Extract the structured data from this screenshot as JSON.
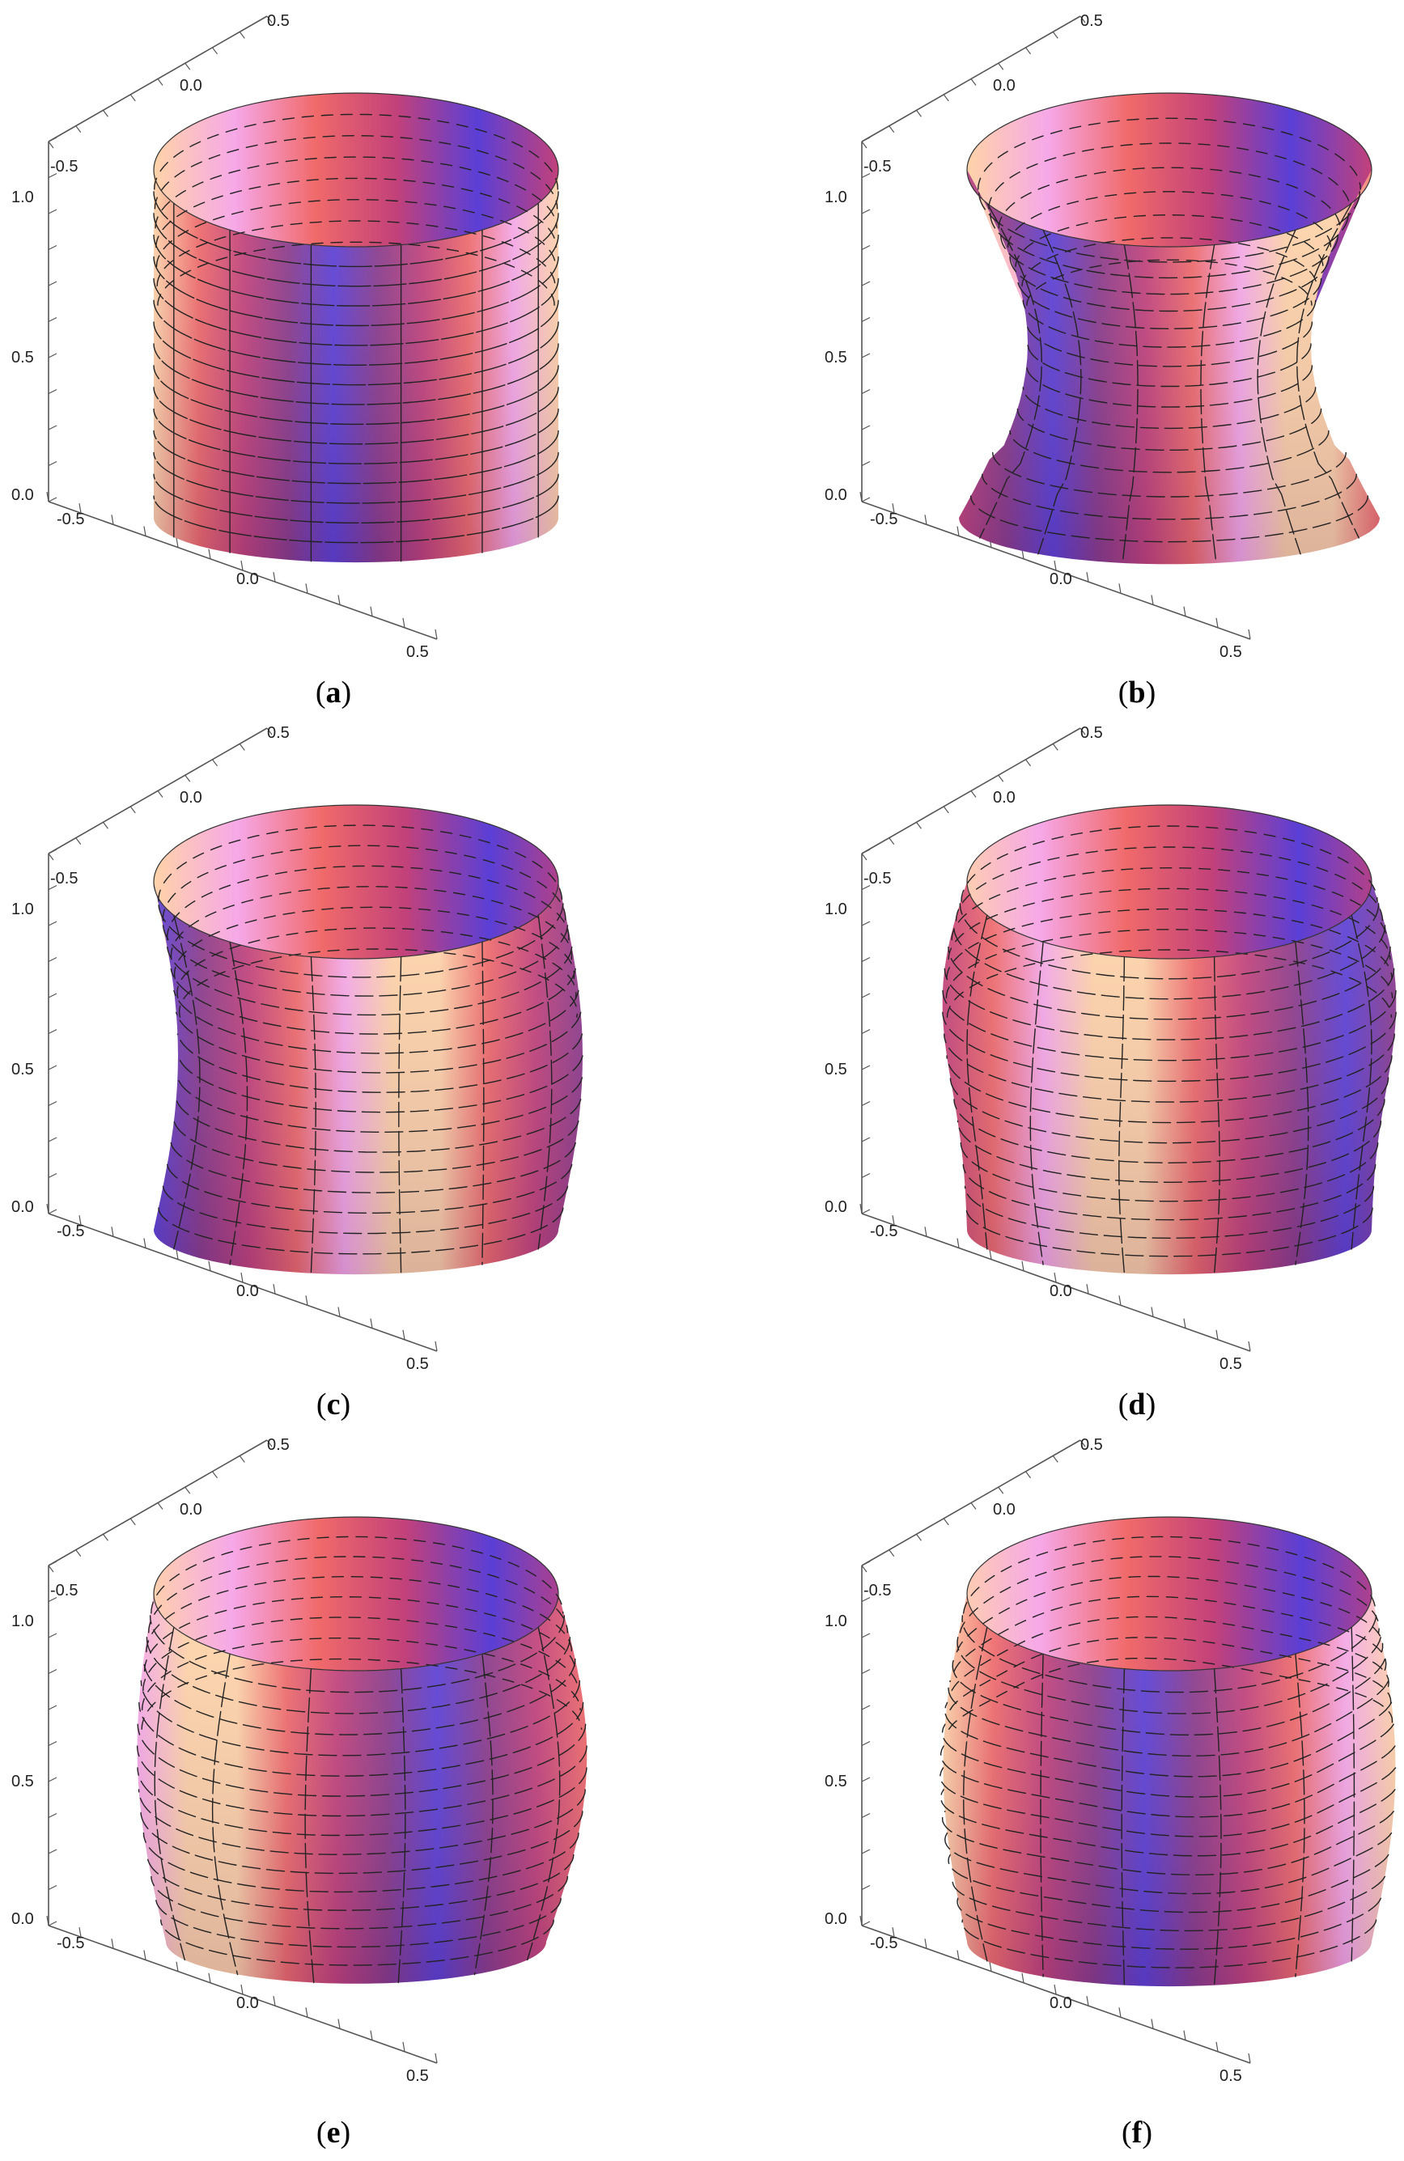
{
  "panels": [
    {
      "id": "a",
      "caption_open": "(",
      "caption_letter": "a",
      "caption_close": ")",
      "axis_ticks": {
        "vertical": [
          "0.0",
          "0.5",
          "1.0"
        ],
        "front": [
          "-0.5",
          "0.0",
          "0.5"
        ],
        "back": [
          "-0.5",
          "0.0",
          "0.5"
        ]
      },
      "shape": "cylinder"
    },
    {
      "id": "b",
      "caption_open": "(",
      "caption_letter": "b",
      "caption_close": ")",
      "axis_ticks": {
        "vertical": [
          "0.0",
          "0.5",
          "1.0"
        ],
        "front": [
          "-0.5",
          "0.0",
          "0.5"
        ],
        "back": [
          "-0.5",
          "0.0",
          "0.5"
        ]
      },
      "shape": "hourglass"
    },
    {
      "id": "c",
      "caption_open": "(",
      "caption_letter": "c",
      "caption_close": ")",
      "axis_ticks": {
        "vertical": [
          "0.0",
          "0.5",
          "1.0"
        ],
        "front": [
          "-0.5",
          "0.0",
          "0.5"
        ],
        "back": [
          "-0.5",
          "0.0",
          "0.5"
        ]
      },
      "shape": "bent"
    },
    {
      "id": "d",
      "caption_open": "(",
      "caption_letter": "d",
      "caption_close": ")",
      "axis_ticks": {
        "vertical": [
          "0.0",
          "0.5",
          "1.0"
        ],
        "front": [
          "-0.5",
          "0.0",
          "0.5"
        ],
        "back": [
          "-0.5",
          "0.0",
          "0.5"
        ]
      },
      "shape": "bulged"
    },
    {
      "id": "e",
      "caption_open": "(",
      "caption_letter": "e",
      "caption_close": ")",
      "axis_ticks": {
        "vertical": [
          "0.0",
          "0.5",
          "1.0"
        ],
        "front": [
          "-0.5",
          "0.0",
          "0.5"
        ],
        "back": [
          "-0.5",
          "0.0",
          "0.5"
        ]
      },
      "shape": "barrel"
    },
    {
      "id": "f",
      "caption_open": "(",
      "caption_letter": "f",
      "caption_close": ")",
      "axis_ticks": {
        "vertical": [
          "0.0",
          "0.5",
          "1.0"
        ],
        "front": [
          "-0.5",
          "0.0",
          "0.5"
        ],
        "back": [
          "-0.5",
          "0.0",
          "0.5"
        ]
      },
      "shape": "wavy"
    }
  ],
  "colors": {
    "purple": "#5a3fd6",
    "magenta": "#c2417a",
    "coral": "#f06a6a",
    "peach": "#ffd3a8",
    "pink": "#f6a8e8",
    "plum": "#8a3a8a"
  }
}
